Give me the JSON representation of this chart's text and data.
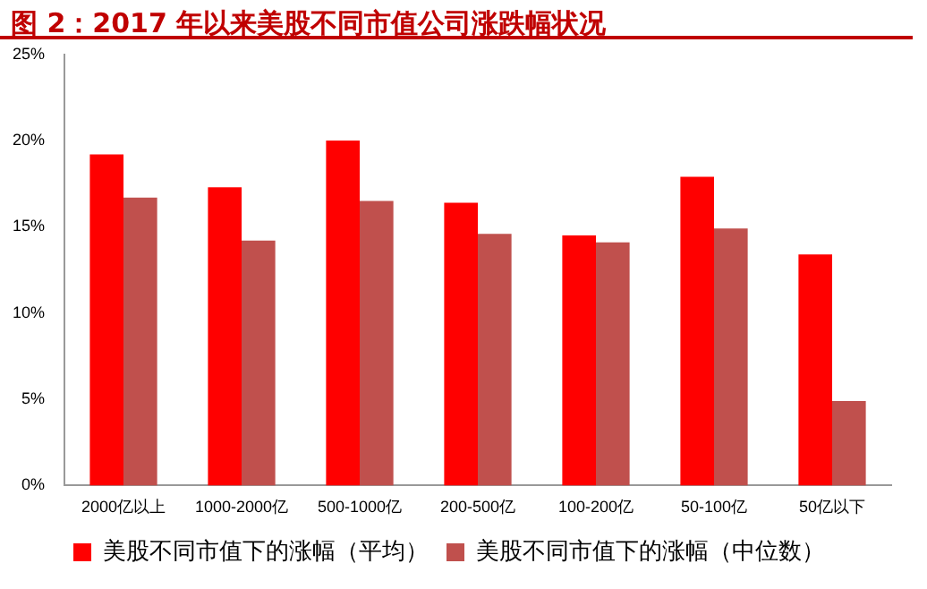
{
  "chart_data": {
    "type": "bar",
    "title": "图 2：2017 年以来美股不同市值公司涨跌幅状况",
    "categories": [
      "2000亿以上",
      "1000-2000亿",
      "500-1000亿",
      "200-500亿",
      "100-200亿",
      "50-100亿",
      "50亿以下"
    ],
    "series": [
      {
        "name": "美股不同市值下的涨幅（平均）",
        "color": "#ff0000",
        "values": [
          19.2,
          17.3,
          20.0,
          16.4,
          14.5,
          17.9,
          13.4
        ]
      },
      {
        "name": "美股不同市值下的涨幅（中位数）",
        "color": "#c0504d",
        "values": [
          16.7,
          14.2,
          16.5,
          14.6,
          14.1,
          14.9,
          4.9
        ]
      }
    ],
    "ylim": [
      0,
      25
    ],
    "yticks": [
      {
        "value": 0,
        "label": "0%"
      },
      {
        "value": 5,
        "label": "5%"
      },
      {
        "value": 10,
        "label": "10%"
      },
      {
        "value": 15,
        "label": "15%"
      },
      {
        "value": 20,
        "label": "20%"
      },
      {
        "value": 25,
        "label": "25%"
      }
    ],
    "grid": false,
    "legend": "bottom"
  }
}
